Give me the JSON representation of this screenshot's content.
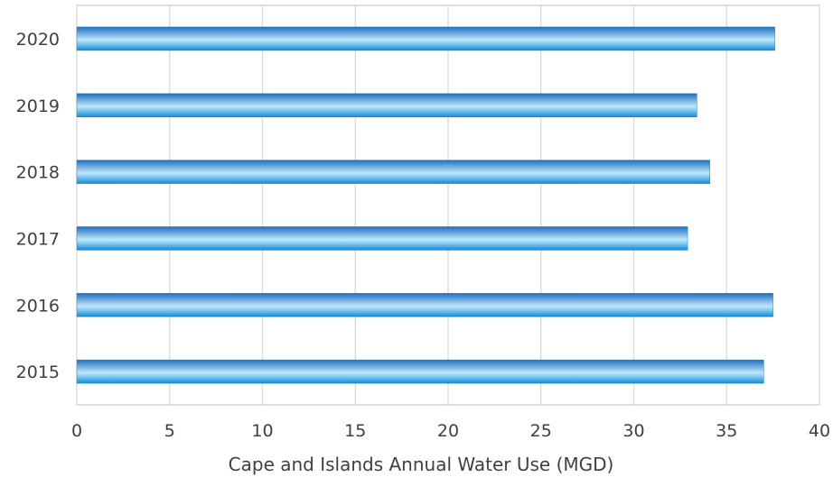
{
  "chart_data": {
    "type": "bar",
    "orientation": "horizontal",
    "categories": [
      "2020",
      "2019",
      "2018",
      "2017",
      "2016",
      "2015"
    ],
    "values": [
      37.6,
      33.4,
      34.1,
      32.9,
      37.5,
      37.0
    ],
    "title": "",
    "xlabel": "Cape and Islands Annual Water Use (MGD)",
    "ylabel": "",
    "xlim": [
      0,
      40
    ],
    "xticks": [
      "0",
      "5",
      "10",
      "15",
      "20",
      "25",
      "30",
      "35",
      "40"
    ],
    "grid": "vertical",
    "legend": "none",
    "colors": {
      "bar_dark": "#1f78c8",
      "bar_light": "#c9ecfb",
      "bar_edge": "#0e8ed8",
      "grid": "#d9d9d9",
      "frame": "#bfbfbf"
    }
  }
}
